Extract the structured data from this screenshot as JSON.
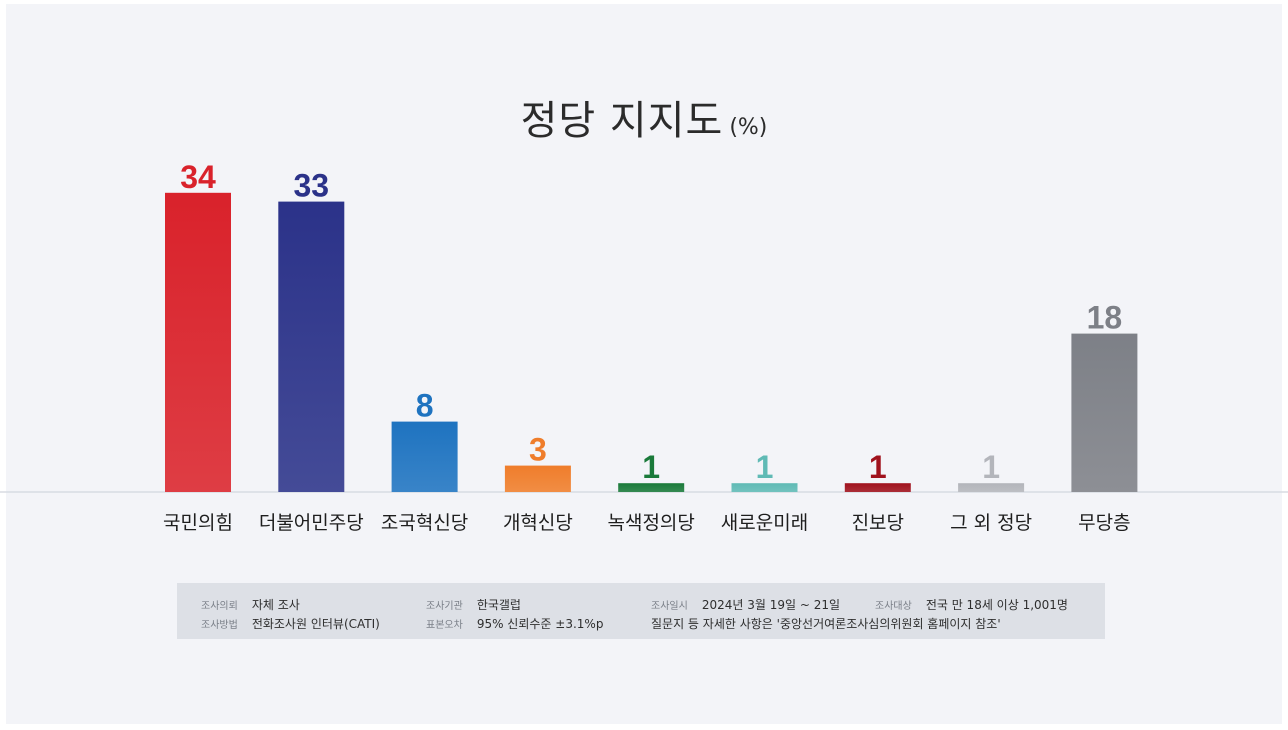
{
  "title": {
    "main": "정당 지지도",
    "unit": "(%)"
  },
  "chart_data": {
    "type": "bar",
    "title": "정당 지지도 (%)",
    "categories": [
      "국민의힘",
      "더불어민주당",
      "조국혁신당",
      "개혁신당",
      "녹색정의당",
      "새로운미래",
      "진보당",
      "그 외 정당",
      "무당층"
    ],
    "values": [
      34,
      33,
      8,
      3,
      1,
      1,
      1,
      1,
      18
    ],
    "colors": [
      "#d9222b",
      "#2b3289",
      "#1e73c0",
      "#ef7d2b",
      "#1a7a3a",
      "#5fbab5",
      "#a0121d",
      "#b3b5bb",
      "#7d8087"
    ],
    "label_colors": [
      "#d9222b",
      "#2b3289",
      "#1e73c0",
      "#ef7d2b",
      "#1a7a3a",
      "#5fbab5",
      "#a0121d",
      "#b3b5bb",
      "#7d8087"
    ],
    "ylim": [
      0,
      40
    ],
    "xlabel": "",
    "ylabel": "",
    "grid": false
  },
  "footer": {
    "row1": [
      {
        "key": "조사의뢰",
        "value": "자체 조사"
      },
      {
        "key": "조사기관",
        "value": "한국갤럽"
      },
      {
        "key": "조사일시",
        "value": "2024년 3월 19일 ~ 21일"
      },
      {
        "key": "조사대상",
        "value": "전국 만 18세 이상 1,001명"
      }
    ],
    "row2": [
      {
        "key": "조사방법",
        "value": "전화조사원 인터뷰(CATI)"
      },
      {
        "key": "표본오차",
        "value": "95% 신뢰수준 ±3.1%p"
      }
    ],
    "note": "질문지 등 자세한 사항은 '중앙선거여론조사심의위원회 홈페이지 참조'"
  }
}
